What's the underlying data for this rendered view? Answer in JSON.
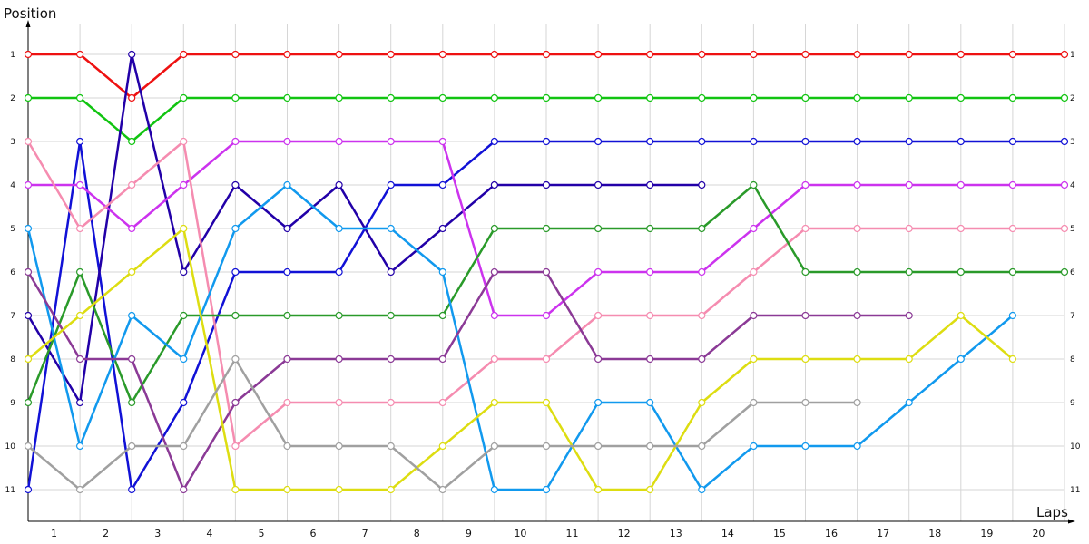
{
  "chart_data": {
    "type": "line",
    "xlabel": "Laps",
    "ylabel": "Position",
    "x_tick_labels": [
      "1",
      "2",
      "3",
      "4",
      "5",
      "6",
      "7",
      "8",
      "9",
      "10",
      "11",
      "12",
      "13",
      "14",
      "15",
      "16",
      "17",
      "18",
      "19",
      "20"
    ],
    "y_tick_labels": [
      "1",
      "2",
      "3",
      "4",
      "5",
      "6",
      "7",
      "8",
      "9",
      "10",
      "11"
    ],
    "ylim": [
      1,
      11
    ],
    "y_inverted": true,
    "grid": true,
    "series": [
      {
        "color": "#ee1111",
        "positions": [
          1,
          1,
          2,
          1,
          1,
          1,
          1,
          1,
          1,
          1,
          1,
          1,
          1,
          1,
          1,
          1,
          1,
          1,
          1,
          1,
          1
        ]
      },
      {
        "color": "#11c411",
        "positions": [
          2,
          2,
          3,
          2,
          2,
          2,
          2,
          2,
          2,
          2,
          2,
          2,
          2,
          2,
          2,
          2,
          2,
          2,
          2,
          2,
          2
        ]
      },
      {
        "color": "#1111d6",
        "positions": [
          11,
          3,
          11,
          9,
          6,
          6,
          6,
          4,
          4,
          3,
          3,
          3,
          3,
          3,
          3,
          3,
          3,
          3,
          3,
          3,
          3
        ]
      },
      {
        "color": "#2200a8",
        "positions": [
          7,
          9,
          1,
          6,
          4,
          5,
          4,
          6,
          5,
          4,
          4,
          4,
          4,
          4
        ]
      },
      {
        "color": "#cc33ee",
        "positions": [
          4,
          4,
          5,
          4,
          3,
          3,
          3,
          3,
          3,
          7,
          7,
          6,
          6,
          6,
          5,
          4,
          4,
          4,
          4,
          4,
          4
        ]
      },
      {
        "color": "#f58cb0",
        "positions": [
          3,
          5,
          4,
          3,
          10,
          9,
          9,
          9,
          9,
          8,
          8,
          7,
          7,
          7,
          6,
          5,
          5,
          5,
          5,
          5,
          5
        ]
      },
      {
        "color": "#2a9a2a",
        "positions": [
          9,
          6,
          9,
          7,
          7,
          7,
          7,
          7,
          7,
          5,
          5,
          5,
          5,
          5,
          4,
          6,
          6,
          6,
          6,
          6,
          6
        ]
      },
      {
        "color": "#1199ee",
        "positions": [
          5,
          10,
          7,
          8,
          5,
          4,
          5,
          5,
          6,
          11,
          11,
          9,
          9,
          11,
          10,
          10,
          10,
          9,
          8,
          7
        ]
      },
      {
        "color": "#8b3a96",
        "positions": [
          6,
          8,
          8,
          11,
          9,
          8,
          8,
          8,
          8,
          6,
          6,
          8,
          8,
          8,
          7,
          7,
          7,
          7
        ]
      },
      {
        "color": "#dddd11",
        "positions": [
          8,
          7,
          6,
          5,
          11,
          11,
          11,
          11,
          10,
          9,
          9,
          11,
          11,
          9,
          8,
          8,
          8,
          8,
          7,
          8
        ]
      },
      {
        "color": "#a0a0a0",
        "positions": [
          10,
          11,
          10,
          10,
          8,
          10,
          10,
          10,
          11,
          10,
          10,
          10,
          10,
          10,
          9,
          9,
          9
        ]
      }
    ]
  }
}
